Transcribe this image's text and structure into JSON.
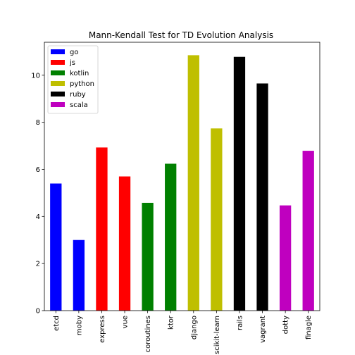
{
  "chart_data": {
    "type": "bar",
    "title": "Mann-Kendall Test for TD Evolution Analysis",
    "xlabel": "",
    "ylabel": "",
    "categories": [
      "etcd",
      "moby",
      "express",
      "vue",
      "coroutines",
      "ktor",
      "django",
      "scikit-learn",
      "rails",
      "vagrant",
      "dotty",
      "finagle"
    ],
    "values": [
      5.4,
      3.0,
      6.93,
      5.7,
      4.58,
      6.24,
      10.85,
      7.74,
      10.78,
      9.65,
      4.47,
      6.79
    ],
    "groups": [
      "go",
      "go",
      "js",
      "js",
      "kotlin",
      "kotlin",
      "python",
      "python",
      "ruby",
      "ruby",
      "scala",
      "scala"
    ],
    "ylim": [
      0,
      11.4
    ],
    "yticks": [
      0,
      2,
      4,
      6,
      8,
      10
    ],
    "grid": false,
    "legend": {
      "placement": "top-left",
      "entries": [
        {
          "name": "go",
          "color": "#0000ff"
        },
        {
          "name": "js",
          "color": "#ff0000"
        },
        {
          "name": "kotlin",
          "color": "#008000"
        },
        {
          "name": "python",
          "color": "#bfbf00"
        },
        {
          "name": "ruby",
          "color": "#000000"
        },
        {
          "name": "scala",
          "color": "#bf00bf"
        }
      ]
    }
  }
}
